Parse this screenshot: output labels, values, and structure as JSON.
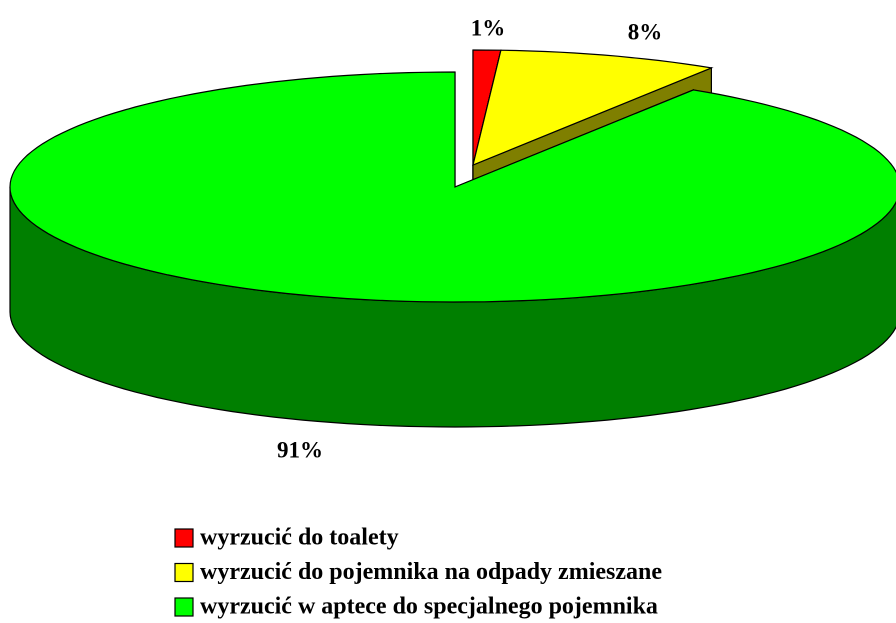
{
  "chart_data": {
    "type": "pie3d",
    "categories": [
      "wyrzucić do toalety",
      "wyrzucić do pojemnika na odpady zmieszane",
      "wyrzucić w aptece do specjalnego pojemnika"
    ],
    "series": [
      {
        "values": [
          1,
          8,
          91
        ],
        "value_labels": [
          "1%",
          "8%",
          "91%"
        ],
        "colors": [
          "#ff0000",
          "#ffff00",
          "#00ff00"
        ]
      }
    ],
    "legend": "bottom"
  }
}
